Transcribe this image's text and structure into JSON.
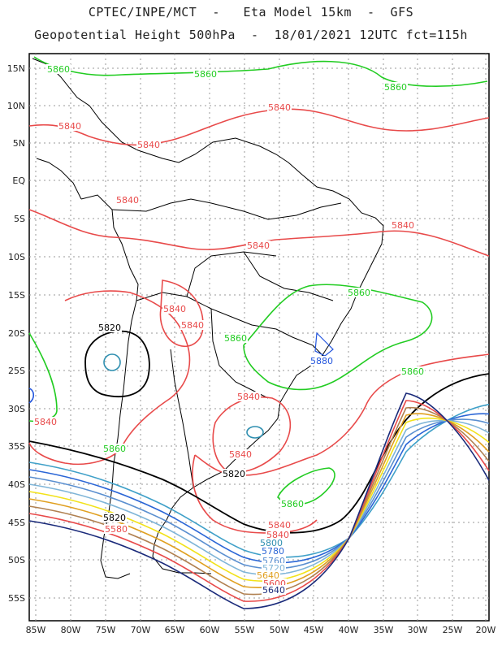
{
  "header": {
    "line1": "CPTEC/INPE/MCT  -   Eta Model 15km  -  GFS",
    "line2": "Geopotential Height 500hPa  -  18/01/2021 12UTC fct=115h"
  },
  "axes": {
    "lat_labels": [
      "15N",
      "10N",
      "5N",
      "EQ",
      "5S",
      "10S",
      "15S",
      "20S",
      "25S",
      "30S",
      "35S",
      "40S",
      "45S",
      "50S",
      "55S"
    ],
    "lon_labels": [
      "85W",
      "80W",
      "75W",
      "70W",
      "65W",
      "60W",
      "55W",
      "50W",
      "45W",
      "40W",
      "35W",
      "30W",
      "25W",
      "20W"
    ]
  },
  "contours": {
    "colors": {
      "5860": "#22cc22",
      "5840": "#e84a4a",
      "5820": "#000000",
      "5880": "#2255dd",
      "5800": "#2f8fb0",
      "cold": [
        "#3fa0c8",
        "#2b66d6",
        "#5a8fd0",
        "#7fb5d8",
        "#f2e21a",
        "#e0a020",
        "#b08050",
        "#e84a4a",
        "#1a2a7a"
      ]
    },
    "labels": [
      {
        "text": "5860",
        "color": "#22cc22"
      },
      {
        "text": "5860",
        "color": "#22cc22"
      },
      {
        "text": "5860",
        "color": "#22cc22"
      },
      {
        "text": "5840",
        "color": "#e84a4a"
      },
      {
        "text": "5840",
        "color": "#e84a4a"
      },
      {
        "text": "5840",
        "color": "#e84a4a"
      },
      {
        "text": "5840",
        "color": "#e84a4a"
      },
      {
        "text": "5840",
        "color": "#e84a4a"
      },
      {
        "text": "5840",
        "color": "#e84a4a"
      },
      {
        "text": "5840",
        "color": "#e84a4a"
      },
      {
        "text": "5840",
        "color": "#e84a4a"
      },
      {
        "text": "5860",
        "color": "#22cc22"
      },
      {
        "text": "5820",
        "color": "#000000"
      },
      {
        "text": "5860",
        "color": "#22cc22"
      },
      {
        "text": "5880",
        "color": "#2255dd"
      },
      {
        "text": "5860",
        "color": "#22cc22"
      },
      {
        "text": "5840",
        "color": "#e84a4a"
      },
      {
        "text": "5860",
        "color": "#22cc22"
      },
      {
        "text": "5840",
        "color": "#e84a4a"
      },
      {
        "text": "5820",
        "color": "#000000"
      },
      {
        "text": "5840",
        "color": "#e84a4a"
      },
      {
        "text": "5860",
        "color": "#22cc22"
      },
      {
        "text": "5840",
        "color": "#e84a4a"
      },
      {
        "text": "5840",
        "color": "#e84a4a"
      },
      {
        "text": "5820",
        "color": "#000000"
      },
      {
        "text": "5800",
        "color": "#2f8fb0"
      },
      {
        "text": "5780",
        "color": "#2b66d6"
      },
      {
        "text": "5760",
        "color": "#5a8fd0"
      },
      {
        "text": "5720",
        "color": "#7fb5d8"
      },
      {
        "text": "5640",
        "color": "#e0a020"
      },
      {
        "text": "5600",
        "color": "#e84a4a"
      },
      {
        "text": "5640",
        "color": "#1a2a7a"
      },
      {
        "text": "5580",
        "color": "#e84a4a"
      }
    ]
  }
}
